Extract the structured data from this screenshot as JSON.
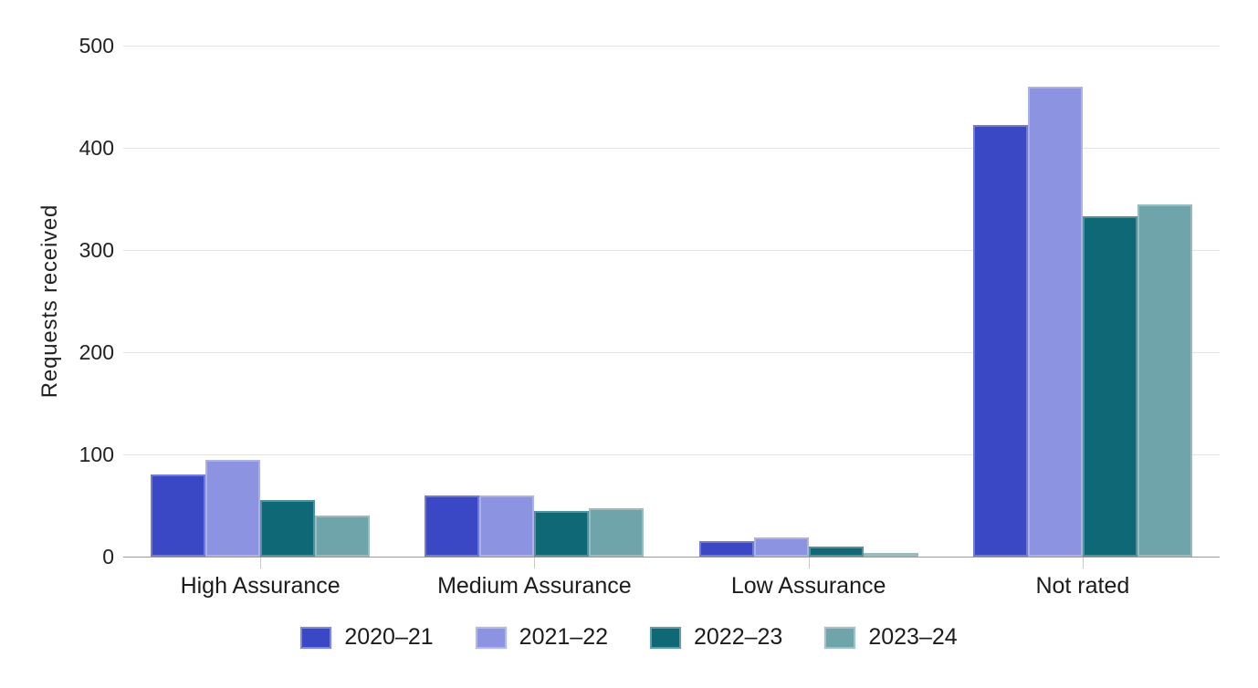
{
  "chart_data": {
    "type": "bar",
    "title": "",
    "xlabel": "",
    "ylabel": "Requests received",
    "categories": [
      "High Assurance",
      "Medium Assurance",
      "Low Assurance",
      "Not rated"
    ],
    "series": [
      {
        "name": "2020–21",
        "color": "#3b48c6",
        "values": [
          80,
          60,
          15,
          422
        ]
      },
      {
        "name": "2021–22",
        "color": "#8c93e0",
        "values": [
          95,
          60,
          19,
          460
        ]
      },
      {
        "name": "2022–23",
        "color": "#0e6876",
        "values": [
          55,
          45,
          10,
          333
        ]
      },
      {
        "name": "2023–24",
        "color": "#6fa4aa",
        "values": [
          40,
          47,
          4,
          345
        ]
      }
    ],
    "ylim": [
      0,
      500
    ],
    "yticks": [
      0,
      100,
      200,
      300,
      400,
      500
    ],
    "grid": true,
    "legend_position": "bottom",
    "colors": {
      "gridline": "#e3e3e3",
      "axis_line": "#9a9a9a",
      "tick_mark": "#c9c9c9",
      "text": "#1c1c1c"
    }
  }
}
